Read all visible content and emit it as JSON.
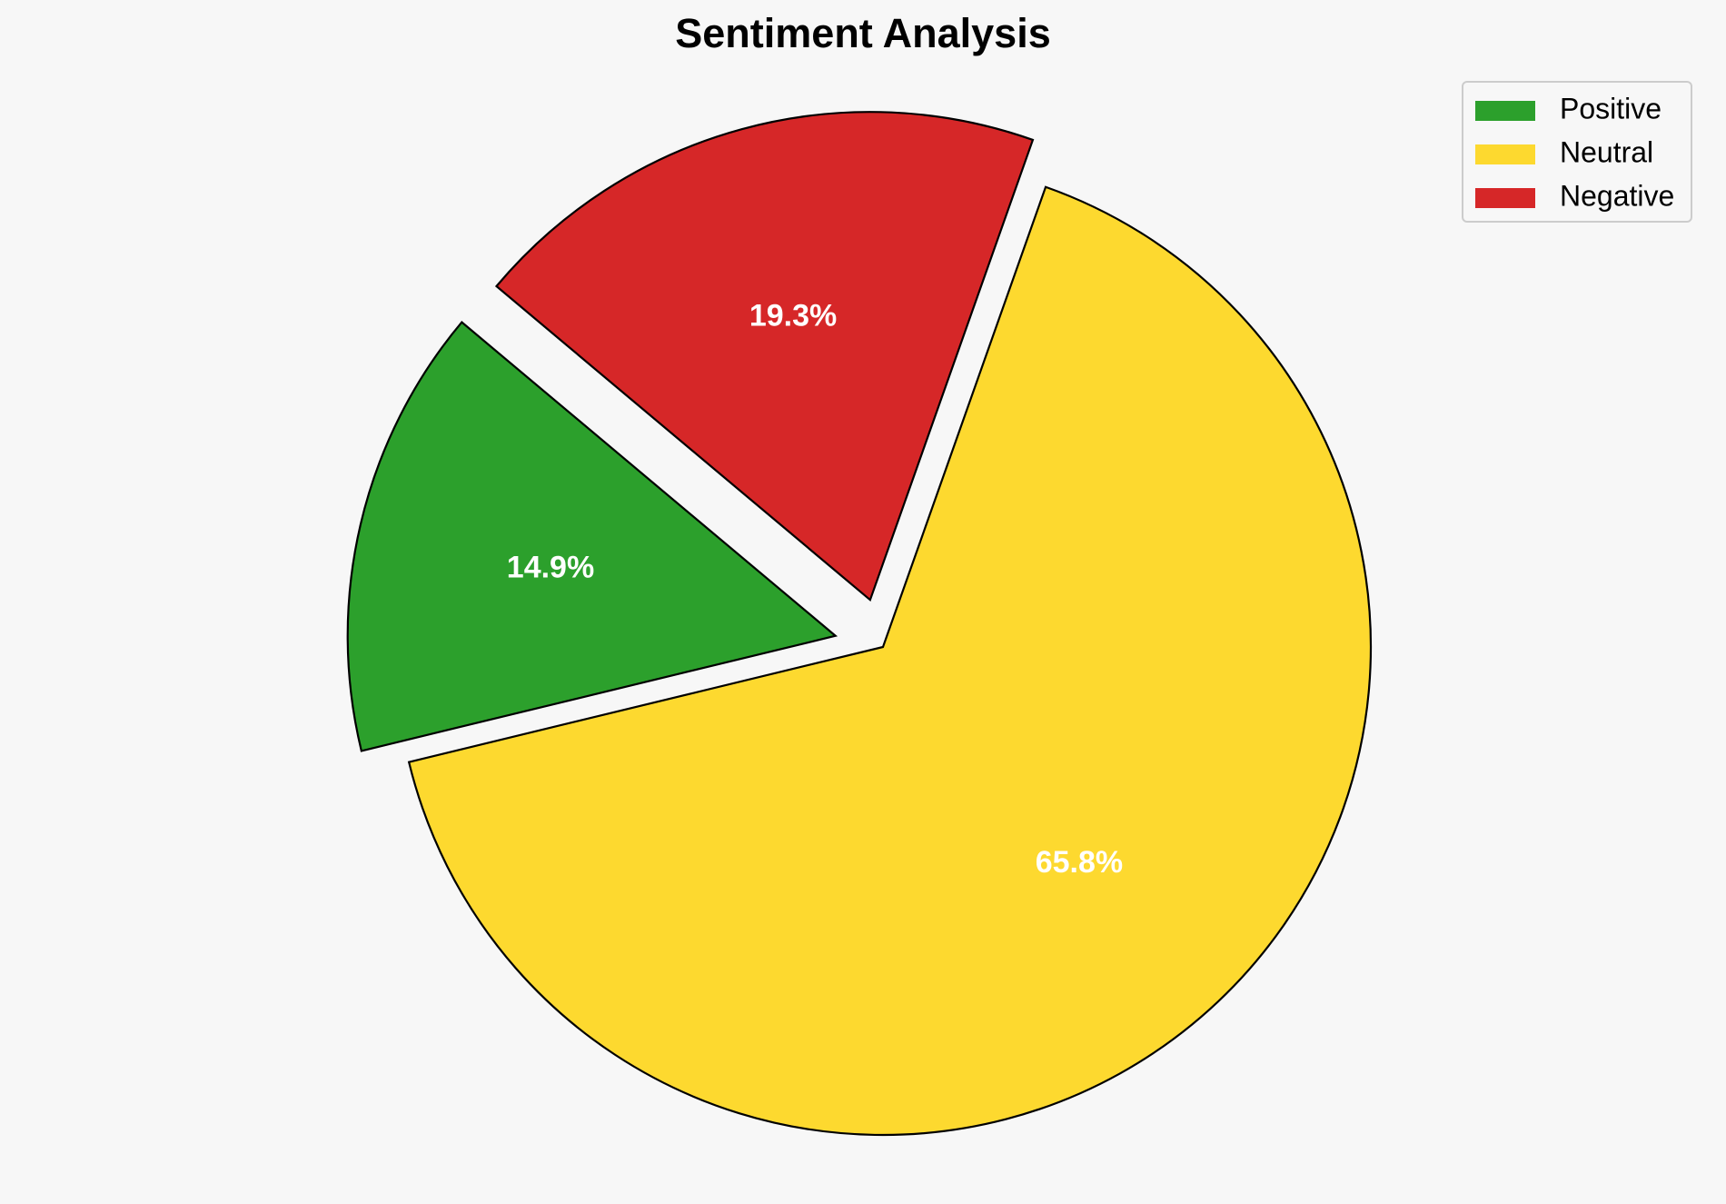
{
  "chart_data": {
    "type": "pie",
    "title": "Sentiment Analysis",
    "categories": [
      "Positive",
      "Neutral",
      "Negative"
    ],
    "values": [
      14.9,
      65.8,
      19.3
    ],
    "value_labels": [
      "14.9%",
      "65.8%",
      "19.3%"
    ],
    "colors": [
      "#2ca02c",
      "#fdd92f",
      "#d62728"
    ],
    "explode": [
      0.1,
      0,
      0.1
    ],
    "startangle": 140,
    "legend": "upper right"
  }
}
